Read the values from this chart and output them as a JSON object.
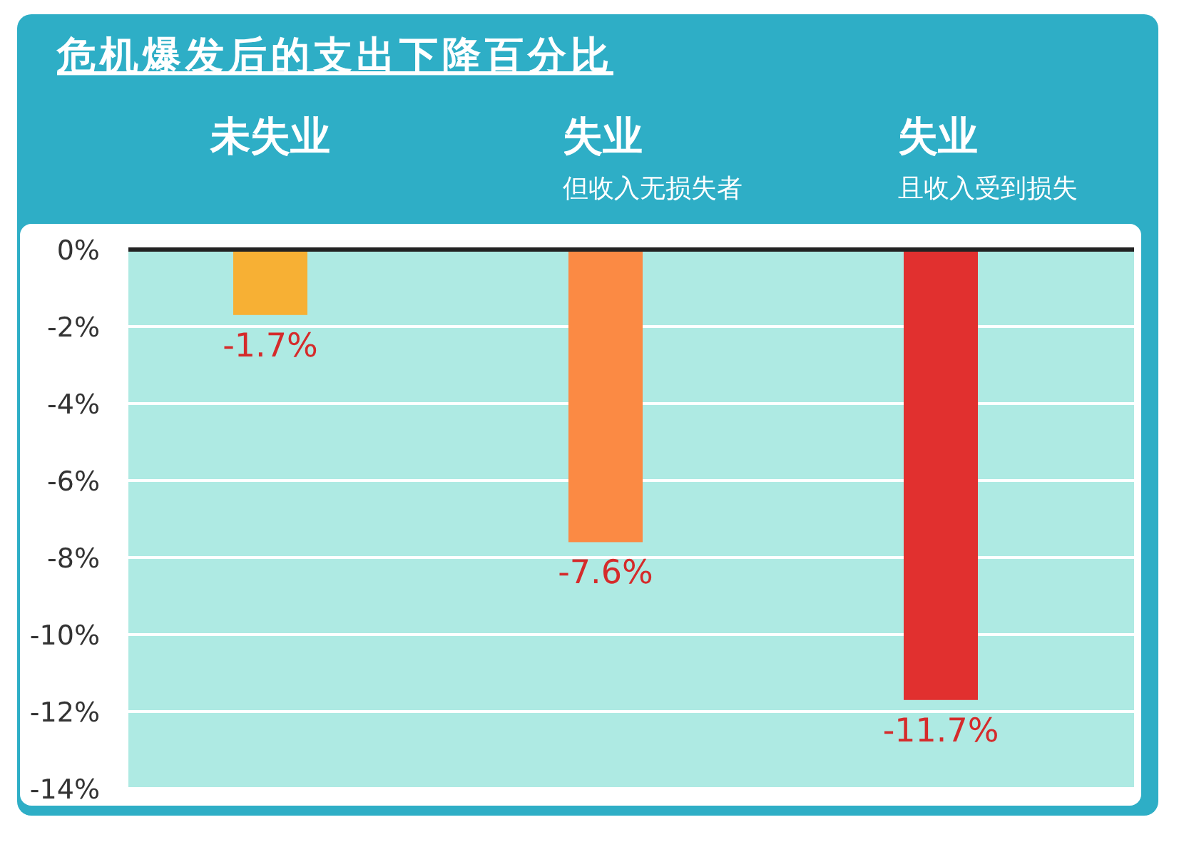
{
  "chart_data": {
    "type": "bar",
    "title": "危机爆发后的支出下降百分比",
    "categories": [
      "未失业",
      "失业",
      "失业"
    ],
    "annotations": [
      "但收入无损失者",
      "且收入受到损失"
    ],
    "values": [
      -1.7,
      -7.6,
      -11.7
    ],
    "colors": [
      "#f7b034",
      "#fb8a44",
      "#e1302f"
    ],
    "value_labels": [
      "-1.7%",
      "-7.6%",
      "-11.7%"
    ],
    "ylim": [
      -14,
      0
    ],
    "yticks": [
      {
        "value": 0,
        "label": "0%"
      },
      {
        "value": -2,
        "label": "-2%"
      },
      {
        "value": -4,
        "label": "-4%"
      },
      {
        "value": -6,
        "label": "-6%"
      },
      {
        "value": -8,
        "label": "-8%"
      },
      {
        "value": -10,
        "label": "-10%"
      },
      {
        "value": -12,
        "label": "-12%"
      },
      {
        "value": -14,
        "label": "-14%"
      }
    ],
    "grid": "y"
  }
}
